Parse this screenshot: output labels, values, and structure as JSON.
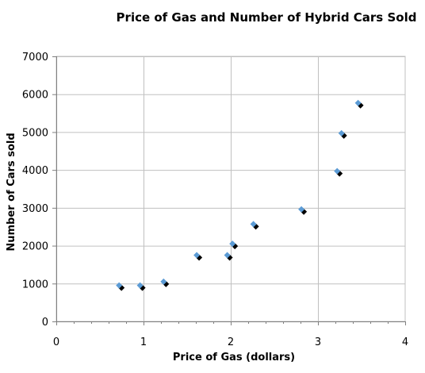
{
  "chart_data": {
    "type": "scatter",
    "title": "Price of Gas and Number of Hybrid Cars Sold",
    "xlabel": "Price of Gas (dollars)",
    "ylabel": "Number of Cars sold",
    "xlim": [
      0,
      4
    ],
    "ylim": [
      0,
      7000
    ],
    "x_ticks": [
      0,
      1,
      2,
      3,
      4
    ],
    "y_ticks": [
      0,
      1000,
      2000,
      3000,
      4000,
      5000,
      6000,
      7000
    ],
    "x_tick_labels": [
      "0",
      "1",
      "2",
      "3",
      "4"
    ],
    "y_tick_labels": [
      "0",
      "1000",
      "2000",
      "3000",
      "4000",
      "5000",
      "6000",
      "7000"
    ],
    "grid": "major",
    "marker": "diamond",
    "colors": {
      "marker": "#5b9bd5",
      "shadow": "#000000",
      "grid": "#c0c0c0",
      "axis": "#808080"
    },
    "points": [
      {
        "x": 0.72,
        "y": 950
      },
      {
        "x": 0.96,
        "y": 950
      },
      {
        "x": 1.23,
        "y": 1050
      },
      {
        "x": 1.61,
        "y": 1750
      },
      {
        "x": 1.96,
        "y": 1750
      },
      {
        "x": 2.02,
        "y": 2050
      },
      {
        "x": 2.26,
        "y": 2570
      },
      {
        "x": 2.81,
        "y": 2960
      },
      {
        "x": 3.22,
        "y": 3970
      },
      {
        "x": 3.27,
        "y": 4970
      },
      {
        "x": 3.46,
        "y": 5770
      }
    ]
  }
}
